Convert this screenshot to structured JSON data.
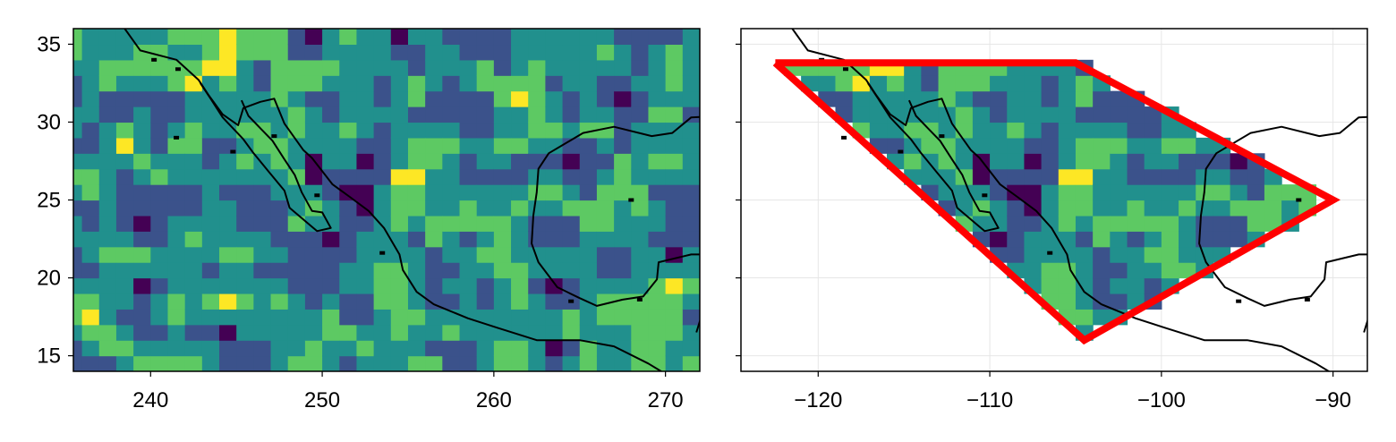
{
  "chart_data": [
    {
      "type": "heatmap",
      "subtype": "filled-contour map",
      "title": "",
      "xlabel": "",
      "ylabel": "",
      "xlim": [
        235.5,
        272
      ],
      "ylim": [
        14,
        36
      ],
      "x_ticks": [
        240,
        250,
        260,
        270
      ],
      "y_ticks": [
        15,
        20,
        25,
        30,
        35
      ],
      "x_tick_labels": [
        "240",
        "250",
        "260",
        "270"
      ],
      "y_tick_labels": [
        "15",
        "20",
        "25",
        "30",
        "35"
      ],
      "grid": false,
      "colormap": "viridis",
      "field": "random noise, 1-degree grid, filled contours",
      "overlay": "coastlines"
    },
    {
      "type": "heatmap",
      "subtype": "filled-contour map masked to polygon",
      "title": "",
      "xlabel": "",
      "ylabel": "",
      "xlim": [
        -124.5,
        -88
      ],
      "ylim": [
        14,
        36
      ],
      "x_ticks": [
        -120,
        -110,
        -100,
        -90
      ],
      "y_ticks": [
        15,
        20,
        25,
        30,
        35
      ],
      "x_tick_labels": [
        "−120",
        "−110",
        "−100",
        "−90"
      ],
      "y_tick_labels": [
        "",
        "",
        "",
        "",
        ""
      ],
      "grid": true,
      "colormap": "viridis",
      "overlay": "coastlines",
      "polygon": {
        "color": "#ff0000",
        "vertices": [
          [
            -122.5,
            33.8
          ],
          [
            -105,
            33.8
          ],
          [
            -90,
            25
          ],
          [
            -104.5,
            16
          ],
          [
            -122.5,
            33.8
          ]
        ]
      }
    }
  ],
  "colors": {
    "viridis": [
      "#440154",
      "#3b528b",
      "#21908d",
      "#5dc963",
      "#fde725"
    ],
    "polygon": "#ff0000",
    "coast": "#000000",
    "grid": "#e6e6e6"
  }
}
